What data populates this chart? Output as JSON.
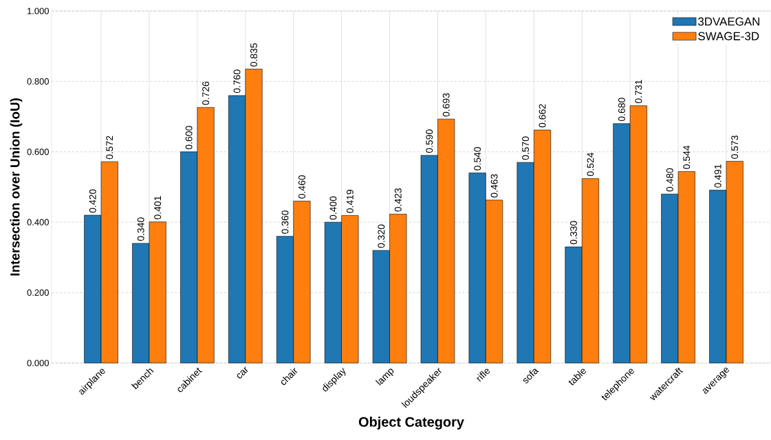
{
  "chart_data": {
    "type": "bar",
    "xlabel": "Object Category",
    "ylabel": "Intersection over Union (IoU)",
    "categories": [
      "airplane",
      "bench",
      "cabinet",
      "car",
      "chair",
      "display",
      "lamp",
      "loudspeaker",
      "rifle",
      "sofa",
      "table",
      "telephone",
      "watercraft",
      "average"
    ],
    "series": [
      {
        "name": "3DVAEGAN",
        "color": "#1f77b4",
        "values": [
          0.42,
          0.34,
          0.6,
          0.76,
          0.36,
          0.4,
          0.32,
          0.59,
          0.54,
          0.57,
          0.33,
          0.68,
          0.48,
          0.491
        ],
        "value_labels": [
          "0.420",
          "0.340",
          "0.600",
          "0.760",
          "0.360",
          "0.400",
          "0.320",
          "0.590",
          "0.540",
          "0.570",
          "0.330",
          "0.680",
          "0.480",
          "0.491"
        ]
      },
      {
        "name": "SWAGE-3D",
        "color": "#ff7f0e",
        "values": [
          0.572,
          0.401,
          0.726,
          0.835,
          0.46,
          0.419,
          0.423,
          0.693,
          0.463,
          0.662,
          0.524,
          0.731,
          0.544,
          0.573
        ],
        "value_labels": [
          "0.572",
          "0.401",
          "0.726",
          "0.835",
          "0.460",
          "0.419",
          "0.423",
          "0.693",
          "0.463",
          "0.662",
          "0.524",
          "0.731",
          "0.544",
          "0.573"
        ]
      }
    ],
    "ylim": [
      0,
      1
    ],
    "yticks": [
      {
        "value": 0,
        "label": "0.000"
      },
      {
        "value": 0.2,
        "label": "0.200"
      },
      {
        "value": 0.4,
        "label": "0.400"
      },
      {
        "value": 0.6,
        "label": "0.600"
      },
      {
        "value": 0.8,
        "label": "0.800"
      },
      {
        "value": 1,
        "label": "1.000"
      }
    ],
    "grid": true,
    "legend": "top right"
  }
}
